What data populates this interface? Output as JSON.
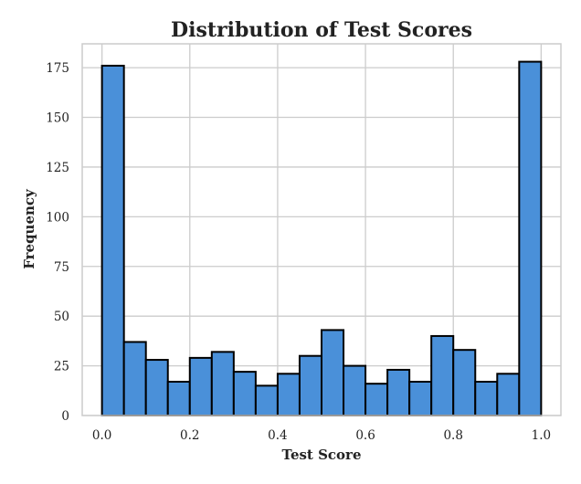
{
  "chart_data": {
    "type": "bar",
    "title": "Distribution of Test Scores",
    "xlabel": "Test Score",
    "ylabel": "Frequency",
    "bin_edges": [
      0.0,
      0.05,
      0.1,
      0.15,
      0.2,
      0.25,
      0.3,
      0.35,
      0.4,
      0.45,
      0.5,
      0.55,
      0.6,
      0.65,
      0.7,
      0.75,
      0.8,
      0.85,
      0.9,
      0.95,
      1.0
    ],
    "values": [
      176,
      37,
      28,
      17,
      29,
      32,
      22,
      15,
      21,
      30,
      43,
      25,
      16,
      23,
      17,
      40,
      33,
      17,
      21,
      178
    ],
    "xlim": [
      -0.045,
      1.045
    ],
    "ylim": [
      0,
      187
    ],
    "x_ticks": [
      0.0,
      0.2,
      0.4,
      0.6,
      0.8,
      1.0
    ],
    "x_tick_labels": [
      "0.0",
      "0.2",
      "0.4",
      "0.6",
      "0.8",
      "1.0"
    ],
    "y_ticks": [
      0,
      25,
      50,
      75,
      100,
      125,
      150,
      175
    ],
    "y_tick_labels": [
      "0",
      "25",
      "50",
      "75",
      "100",
      "125",
      "150",
      "175"
    ],
    "grid": true,
    "bar_color": "#4a90d9",
    "edge_color": "#000000"
  }
}
